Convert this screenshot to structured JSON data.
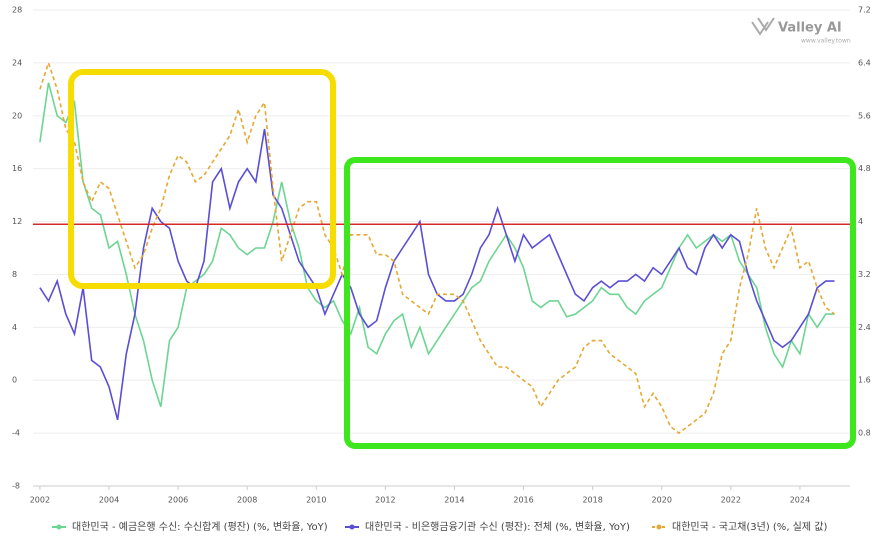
{
  "chart_data": {
    "type": "line",
    "watermark": {
      "name": "Valley AI",
      "url": "www.valley.town"
    },
    "x": [
      2002,
      2002.25,
      2002.5,
      2002.75,
      2003,
      2003.25,
      2003.5,
      2003.75,
      2004,
      2004.25,
      2004.5,
      2004.75,
      2005,
      2005.25,
      2005.5,
      2005.75,
      2006,
      2006.25,
      2006.5,
      2006.75,
      2007,
      2007.25,
      2007.5,
      2007.75,
      2008,
      2008.25,
      2008.5,
      2008.75,
      2009,
      2009.25,
      2009.5,
      2009.75,
      2010,
      2010.25,
      2010.5,
      2010.75,
      2011,
      2011.25,
      2011.5,
      2011.75,
      2012,
      2012.25,
      2012.5,
      2012.75,
      2013,
      2013.25,
      2013.5,
      2013.75,
      2014,
      2014.25,
      2014.5,
      2014.75,
      2015,
      2015.25,
      2015.5,
      2015.75,
      2016,
      2016.25,
      2016.5,
      2016.75,
      2017,
      2017.25,
      2017.5,
      2017.75,
      2018,
      2018.25,
      2018.5,
      2018.75,
      2019,
      2019.25,
      2019.5,
      2019.75,
      2020,
      2020.25,
      2020.5,
      2020.75,
      2021,
      2021.25,
      2021.5,
      2021.75,
      2022,
      2022.25,
      2022.5,
      2022.75,
      2023,
      2023.25,
      2023.5,
      2023.75,
      2024,
      2024.25,
      2024.5,
      2024.75,
      2025
    ],
    "series": [
      {
        "name": "대한민국 - 예금은행 수신: 수신합계 (평잔) (%, 변화율, YoY)",
        "color": "#6dd592",
        "dash": false,
        "values": [
          18,
          22.5,
          20,
          19.5,
          21,
          15,
          13,
          12.5,
          10,
          10.5,
          8,
          5,
          3,
          0,
          -2,
          3,
          4,
          7,
          7.5,
          8,
          9,
          11.5,
          11,
          10,
          9.5,
          10,
          10,
          12,
          15,
          12,
          10,
          7,
          6,
          5.5,
          6,
          4.5,
          3.5,
          5.5,
          2.5,
          2,
          3.5,
          4.5,
          5,
          2.5,
          4,
          2,
          3,
          4,
          5,
          6,
          7,
          7.5,
          9,
          10,
          11,
          10,
          8.5,
          6,
          5.5,
          6,
          6,
          4.8,
          5,
          5.5,
          6,
          7,
          6.5,
          6.5,
          5.5,
          5,
          6,
          6.5,
          7,
          8.5,
          10,
          11,
          10,
          10.5,
          11,
          10.5,
          11,
          9,
          8,
          7,
          4,
          2,
          1,
          3,
          2,
          5,
          4,
          5,
          5
        ]
      },
      {
        "name": "대한민국 - 비은행금융기관 수신 (평잔): 전체 (%, 변화율, YoY)",
        "color": "#5a4ed6",
        "dash": false,
        "values": [
          7,
          6,
          7.5,
          5,
          3.5,
          7,
          1.5,
          1,
          -0.5,
          -3,
          2,
          5,
          10,
          13,
          12,
          11.5,
          9,
          7.5,
          7,
          9,
          15,
          16,
          13,
          15,
          16,
          15,
          19,
          14,
          13,
          11,
          9,
          8,
          7,
          5,
          6.5,
          8,
          7,
          5,
          4,
          4.5,
          7,
          9,
          10,
          11,
          12,
          8,
          6.5,
          6,
          6,
          6.5,
          8,
          10,
          11,
          13,
          11,
          9,
          11,
          10,
          10.5,
          11,
          9.5,
          8,
          6.5,
          6,
          7,
          7.5,
          7,
          7.5,
          7.5,
          8,
          7.5,
          8.5,
          8,
          9,
          10,
          8.5,
          8,
          10,
          11,
          10,
          11,
          10.5,
          8,
          6,
          4.5,
          3,
          2.5,
          3,
          4,
          5,
          7,
          7.5,
          7.5
        ]
      },
      {
        "name": "대한민국 - 국고채(3년) (%, 실제 값)",
        "color": "#e6a832",
        "dash": true,
        "axis": "y2",
        "values": [
          6.0,
          6.4,
          6.0,
          5.4,
          5.2,
          4.6,
          4.3,
          4.6,
          4.5,
          4.1,
          3.7,
          3.3,
          3.5,
          3.9,
          4.2,
          4.7,
          5.0,
          4.9,
          4.6,
          4.7,
          4.9,
          5.1,
          5.3,
          5.7,
          5.2,
          5.6,
          5.8,
          4.5,
          3.4,
          3.8,
          4.2,
          4.3,
          4.3,
          3.8,
          3.6,
          3.2,
          3.8,
          3.8,
          3.8,
          3.5,
          3.5,
          3.4,
          2.9,
          2.8,
          2.7,
          2.6,
          2.9,
          2.9,
          2.9,
          2.8,
          2.5,
          2.2,
          2.0,
          1.8,
          1.8,
          1.7,
          1.6,
          1.5,
          1.2,
          1.4,
          1.6,
          1.7,
          1.8,
          2.1,
          2.2,
          2.2,
          2.0,
          1.9,
          1.8,
          1.7,
          1.2,
          1.4,
          1.2,
          0.9,
          0.8,
          0.9,
          1.0,
          1.1,
          1.4,
          2.0,
          2.2,
          3.0,
          3.5,
          4.2,
          3.6,
          3.3,
          3.6,
          3.9,
          3.3,
          3.4,
          3.0,
          2.7,
          2.6
        ]
      }
    ],
    "xlim": [
      2001.8,
      2025.45
    ],
    "xticks": [
      2002,
      2004,
      2006,
      2008,
      2010,
      2012,
      2014,
      2016,
      2018,
      2020,
      2022,
      2024
    ],
    "ylim": [
      -8,
      28
    ],
    "yticks": [
      -8,
      -4,
      0,
      4,
      8,
      12,
      16,
      20,
      24,
      28
    ],
    "y2lim": [
      0,
      7.2
    ],
    "y2ticks": [
      0.8,
      1.6,
      2.4,
      3.2,
      4,
      4.8,
      5.6,
      6.4,
      7.2
    ],
    "hline": {
      "value": 11.8,
      "color": "#d42a2a"
    }
  }
}
